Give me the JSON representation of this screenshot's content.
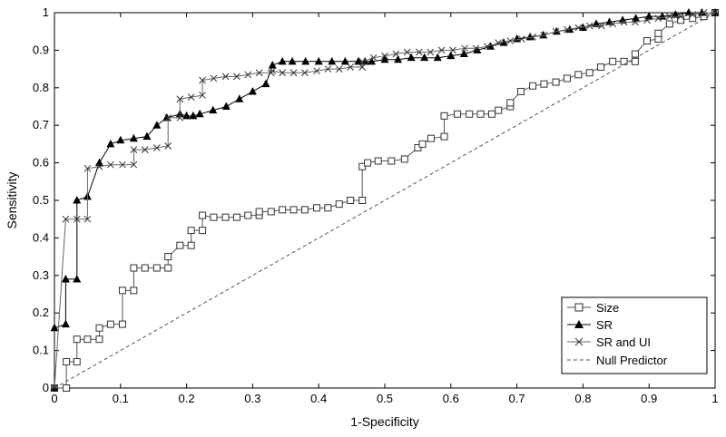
{
  "chart_data": {
    "type": "line",
    "xlabel": "1-Specificity",
    "ylabel": "Sensitivity",
    "xlim": [
      0,
      1
    ],
    "ylim": [
      0,
      1
    ],
    "xticks": [
      "0",
      "0.1",
      "0.2",
      "0.3",
      "0.4",
      "0.5",
      "0.6",
      "0.7",
      "0.8",
      "0.9",
      "1"
    ],
    "yticks": [
      "0",
      "0.1",
      "0.2",
      "0.3",
      "0.4",
      "0.5",
      "0.6",
      "0.7",
      "0.8",
      "0.9",
      "1"
    ],
    "grid": false,
    "legend_position": "bottom-right",
    "series": [
      {
        "name": "Size",
        "marker": "square",
        "color": "#555555",
        "x": [
          0,
          0.018,
          0.018,
          0.034,
          0.034,
          0.05,
          0.068,
          0.068,
          0.085,
          0.103,
          0.103,
          0.12,
          0.12,
          0.137,
          0.155,
          0.172,
          0.172,
          0.19,
          0.207,
          0.207,
          0.224,
          0.224,
          0.241,
          0.259,
          0.276,
          0.293,
          0.31,
          0.31,
          0.328,
          0.345,
          0.362,
          0.379,
          0.397,
          0.414,
          0.431,
          0.448,
          0.466,
          0.466,
          0.474,
          0.49,
          0.51,
          0.53,
          0.55,
          0.557,
          0.57,
          0.59,
          0.59,
          0.61,
          0.628,
          0.645,
          0.662,
          0.672,
          0.69,
          0.69,
          0.706,
          0.724,
          0.741,
          0.759,
          0.776,
          0.793,
          0.81,
          0.827,
          0.845,
          0.862,
          0.879,
          0.879,
          0.897,
          0.914,
          0.914,
          0.931,
          0.948,
          0.966,
          0.983,
          1
        ],
        "y": [
          0,
          0,
          0.07,
          0.07,
          0.13,
          0.13,
          0.13,
          0.16,
          0.17,
          0.17,
          0.26,
          0.26,
          0.32,
          0.32,
          0.32,
          0.32,
          0.35,
          0.38,
          0.38,
          0.42,
          0.42,
          0.46,
          0.455,
          0.455,
          0.455,
          0.46,
          0.46,
          0.47,
          0.47,
          0.475,
          0.475,
          0.475,
          0.48,
          0.48,
          0.49,
          0.5,
          0.5,
          0.59,
          0.6,
          0.605,
          0.605,
          0.61,
          0.64,
          0.65,
          0.665,
          0.67,
          0.725,
          0.73,
          0.73,
          0.73,
          0.73,
          0.74,
          0.75,
          0.76,
          0.79,
          0.805,
          0.81,
          0.815,
          0.825,
          0.835,
          0.84,
          0.855,
          0.87,
          0.87,
          0.87,
          0.89,
          0.925,
          0.93,
          0.945,
          0.97,
          0.98,
          0.985,
          0.99,
          1
        ]
      },
      {
        "name": "SR",
        "marker": "triangle",
        "color": "#000000",
        "x": [
          0,
          0,
          0.017,
          0.017,
          0.034,
          0.034,
          0.05,
          0.068,
          0.085,
          0.1,
          0.12,
          0.14,
          0.155,
          0.17,
          0.19,
          0.2,
          0.21,
          0.22,
          0.24,
          0.26,
          0.28,
          0.3,
          0.32,
          0.33,
          0.345,
          0.36,
          0.38,
          0.4,
          0.42,
          0.44,
          0.46,
          0.47,
          0.48,
          0.5,
          0.52,
          0.54,
          0.56,
          0.58,
          0.6,
          0.62,
          0.64,
          0.66,
          0.68,
          0.7,
          0.72,
          0.74,
          0.76,
          0.78,
          0.8,
          0.82,
          0.84,
          0.86,
          0.88,
          0.9,
          0.92,
          0.94,
          0.96,
          0.98,
          1
        ],
        "y": [
          0,
          0.16,
          0.17,
          0.29,
          0.29,
          0.5,
          0.51,
          0.6,
          0.65,
          0.66,
          0.665,
          0.67,
          0.7,
          0.72,
          0.73,
          0.725,
          0.725,
          0.73,
          0.74,
          0.75,
          0.77,
          0.79,
          0.81,
          0.86,
          0.87,
          0.87,
          0.87,
          0.87,
          0.87,
          0.87,
          0.87,
          0.87,
          0.87,
          0.875,
          0.875,
          0.88,
          0.88,
          0.88,
          0.885,
          0.89,
          0.9,
          0.91,
          0.92,
          0.93,
          0.935,
          0.94,
          0.95,
          0.955,
          0.96,
          0.97,
          0.975,
          0.98,
          0.985,
          0.99,
          0.99,
          0.995,
          1,
          1,
          1
        ]
      },
      {
        "name": "SR and UI",
        "marker": "x",
        "color": "#666666",
        "x": [
          0,
          0.017,
          0.034,
          0.05,
          0.05,
          0.068,
          0.085,
          0.103,
          0.12,
          0.12,
          0.137,
          0.155,
          0.172,
          0.172,
          0.19,
          0.19,
          0.207,
          0.224,
          0.224,
          0.241,
          0.259,
          0.276,
          0.293,
          0.31,
          0.328,
          0.33,
          0.345,
          0.362,
          0.379,
          0.397,
          0.414,
          0.431,
          0.448,
          0.466,
          0.466,
          0.483,
          0.5,
          0.517,
          0.534,
          0.552,
          0.569,
          0.586,
          0.603,
          0.621,
          0.638,
          0.655,
          0.672,
          0.69,
          0.707,
          0.724,
          0.741,
          0.759,
          0.776,
          0.793,
          0.81,
          0.828,
          0.845,
          0.862,
          0.879,
          0.897,
          0.914,
          0.931,
          0.948,
          0.966,
          0.983,
          1
        ],
        "y": [
          0,
          0.45,
          0.45,
          0.45,
          0.585,
          0.59,
          0.595,
          0.595,
          0.595,
          0.635,
          0.635,
          0.64,
          0.645,
          0.72,
          0.72,
          0.77,
          0.775,
          0.78,
          0.82,
          0.825,
          0.83,
          0.83,
          0.835,
          0.84,
          0.84,
          0.845,
          0.84,
          0.84,
          0.84,
          0.845,
          0.85,
          0.85,
          0.855,
          0.855,
          0.87,
          0.88,
          0.885,
          0.89,
          0.895,
          0.895,
          0.895,
          0.9,
          0.9,
          0.905,
          0.905,
          0.91,
          0.92,
          0.925,
          0.93,
          0.935,
          0.94,
          0.95,
          0.955,
          0.96,
          0.965,
          0.965,
          0.97,
          0.975,
          0.975,
          0.98,
          0.985,
          0.99,
          0.99,
          0.995,
          1,
          1
        ]
      },
      {
        "name": "Null Predictor",
        "marker": "none",
        "dashed": true,
        "color": "#555555",
        "x": [
          0,
          1
        ],
        "y": [
          0,
          1
        ]
      }
    ]
  }
}
